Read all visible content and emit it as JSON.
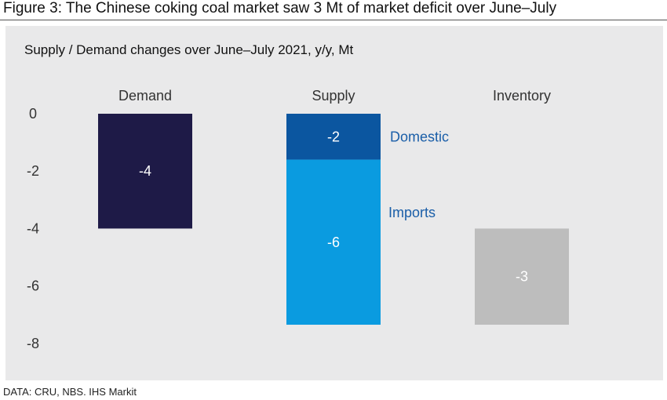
{
  "figure_title": "Figure 3: The Chinese coking coal market saw 3 Mt of market deficit over June–July",
  "source_note": "DATA: CRU, NBS. IHS Markit",
  "chart_data": {
    "type": "bar",
    "subtitle": "Supply / Demand changes over June–July 2021, y/y, Mt",
    "categories": [
      "Demand",
      "Supply",
      "Inventory"
    ],
    "ylim": [
      -8,
      0
    ],
    "y_ticks": [
      0,
      -2,
      -4,
      -6,
      -8
    ],
    "grid": false,
    "segments": [
      {
        "category": "Demand",
        "name": "",
        "start": 0,
        "end": -4,
        "label": "-4",
        "color": "#1e1a47"
      },
      {
        "category": "Supply",
        "name": "Domestic",
        "start": 0,
        "end": -1.6,
        "label": "-2",
        "color": "#0b56a0"
      },
      {
        "category": "Supply",
        "name": "Imports",
        "start": -1.6,
        "end": -7.35,
        "label": "-6",
        "color": "#0a9be0"
      },
      {
        "category": "Inventory",
        "name": "",
        "start": -4,
        "end": -7.35,
        "label": "-3",
        "color": "#bdbdbd"
      }
    ]
  }
}
